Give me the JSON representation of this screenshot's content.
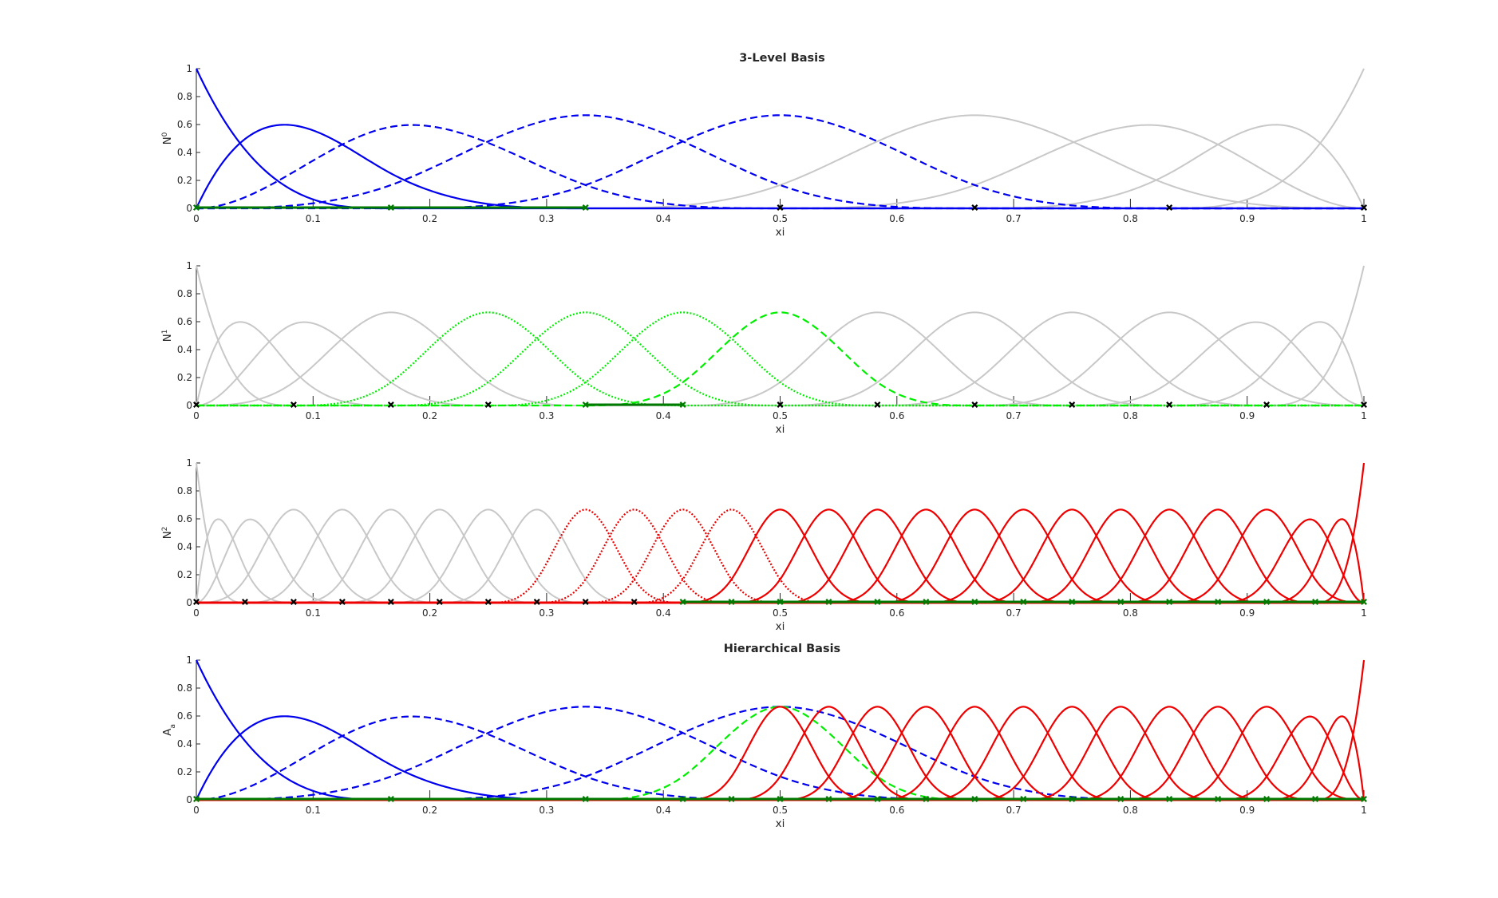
{
  "figure": {
    "background": "#ffffff"
  },
  "colors": {
    "level0": "#0000ee",
    "level1": "#00ee00",
    "level2": "#ee0000",
    "inactive": "#c8c8c8",
    "element_active": "#007a00",
    "knot": "#000000",
    "axis": "#262626"
  },
  "chart_data": [
    {
      "type": "line",
      "title": "3-Level Basis",
      "xlabel": "xi",
      "ylabel": "N",
      "ylabel_sup": "0",
      "xlim": [
        0,
        1
      ],
      "ylim": [
        0,
        1
      ],
      "xticks": [
        "0",
        "0.1",
        "0.2",
        "0.3",
        "0.4",
        "0.5",
        "0.6",
        "0.7",
        "0.8",
        "0.9",
        "1"
      ],
      "yticks": [
        "0",
        "0.2",
        "0.4",
        "0.6",
        "0.8",
        "1"
      ],
      "basis": {
        "degree": 3,
        "elements": 6,
        "level": 0
      },
      "functions": [
        {
          "index": 0,
          "color": "level0",
          "style": "solid"
        },
        {
          "index": 1,
          "color": "level0",
          "style": "solid"
        },
        {
          "index": 2,
          "color": "level0",
          "style": "dashed"
        },
        {
          "index": 3,
          "color": "level0",
          "style": "dashed"
        },
        {
          "index": 4,
          "color": "level0",
          "style": "dashed"
        },
        {
          "index": 5,
          "color": "inactive",
          "style": "solid"
        },
        {
          "index": 6,
          "color": "inactive",
          "style": "solid"
        },
        {
          "index": 7,
          "color": "inactive",
          "style": "solid"
        },
        {
          "index": 8,
          "color": "inactive",
          "style": "solid"
        }
      ],
      "active_elements": [
        [
          0,
          0.16667
        ],
        [
          0.16667,
          0.33333
        ]
      ],
      "knots": [
        0,
        0.16667,
        0.33333,
        0.5,
        0.66667,
        0.83333,
        1
      ],
      "active_knots": [
        0,
        0.16667,
        0.33333
      ]
    },
    {
      "type": "line",
      "title": "",
      "xlabel": "xi",
      "ylabel": "N",
      "ylabel_sup": "1",
      "xlim": [
        0,
        1
      ],
      "ylim": [
        0,
        1
      ],
      "xticks": [
        "0",
        "0.1",
        "0.2",
        "0.3",
        "0.4",
        "0.5",
        "0.6",
        "0.7",
        "0.8",
        "0.9",
        "1"
      ],
      "yticks": [
        "0",
        "0.2",
        "0.4",
        "0.6",
        "0.8",
        "1"
      ],
      "basis": {
        "degree": 3,
        "elements": 12,
        "level": 1
      },
      "functions": [
        {
          "index": 0,
          "color": "inactive",
          "style": "solid"
        },
        {
          "index": 1,
          "color": "inactive",
          "style": "solid"
        },
        {
          "index": 2,
          "color": "inactive",
          "style": "solid"
        },
        {
          "index": 3,
          "color": "inactive",
          "style": "solid"
        },
        {
          "index": 4,
          "color": "level1",
          "style": "dotted"
        },
        {
          "index": 5,
          "color": "level1",
          "style": "dotted"
        },
        {
          "index": 6,
          "color": "level1",
          "style": "dotted"
        },
        {
          "index": 7,
          "color": "level1",
          "style": "dashed"
        },
        {
          "index": 8,
          "color": "inactive",
          "style": "solid"
        },
        {
          "index": 9,
          "color": "inactive",
          "style": "solid"
        },
        {
          "index": 10,
          "color": "inactive",
          "style": "solid"
        },
        {
          "index": 11,
          "color": "inactive",
          "style": "solid"
        },
        {
          "index": 12,
          "color": "inactive",
          "style": "solid"
        },
        {
          "index": 13,
          "color": "inactive",
          "style": "solid"
        },
        {
          "index": 14,
          "color": "inactive",
          "style": "solid"
        }
      ],
      "active_elements": [
        [
          0.33333,
          0.41667
        ]
      ],
      "knots": [
        0,
        0.08333,
        0.16667,
        0.25,
        0.33333,
        0.41667,
        0.5,
        0.58333,
        0.66667,
        0.75,
        0.83333,
        0.91667,
        1
      ],
      "active_knots": [
        0.33333,
        0.41667
      ]
    },
    {
      "type": "line",
      "title": "",
      "xlabel": "xi",
      "ylabel": "N",
      "ylabel_sup": "2",
      "xlim": [
        0,
        1
      ],
      "ylim": [
        0,
        1
      ],
      "xticks": [
        "0",
        "0.1",
        "0.2",
        "0.3",
        "0.4",
        "0.5",
        "0.6",
        "0.7",
        "0.8",
        "0.9",
        "1"
      ],
      "yticks": [
        "0",
        "0.2",
        "0.4",
        "0.6",
        "0.8",
        "1"
      ],
      "basis": {
        "degree": 3,
        "elements": 24,
        "level": 2
      },
      "functions": [
        {
          "index": 0,
          "color": "inactive",
          "style": "solid"
        },
        {
          "index": 1,
          "color": "inactive",
          "style": "solid"
        },
        {
          "index": 2,
          "color": "inactive",
          "style": "solid"
        },
        {
          "index": 3,
          "color": "inactive",
          "style": "solid"
        },
        {
          "index": 4,
          "color": "inactive",
          "style": "solid"
        },
        {
          "index": 5,
          "color": "inactive",
          "style": "solid"
        },
        {
          "index": 6,
          "color": "inactive",
          "style": "solid"
        },
        {
          "index": 7,
          "color": "inactive",
          "style": "solid"
        },
        {
          "index": 8,
          "color": "inactive",
          "style": "solid"
        },
        {
          "index": 9,
          "color": "level2",
          "style": "dotted"
        },
        {
          "index": 10,
          "color": "level2",
          "style": "dotted"
        },
        {
          "index": 11,
          "color": "level2",
          "style": "dotted"
        },
        {
          "index": 12,
          "color": "level2",
          "style": "dotted"
        },
        {
          "index": 13,
          "color": "level2",
          "style": "solid"
        },
        {
          "index": 14,
          "color": "level2",
          "style": "solid"
        },
        {
          "index": 15,
          "color": "level2",
          "style": "solid"
        },
        {
          "index": 16,
          "color": "level2",
          "style": "solid"
        },
        {
          "index": 17,
          "color": "level2",
          "style": "solid"
        },
        {
          "index": 18,
          "color": "level2",
          "style": "solid"
        },
        {
          "index": 19,
          "color": "level2",
          "style": "solid"
        },
        {
          "index": 20,
          "color": "level2",
          "style": "solid"
        },
        {
          "index": 21,
          "color": "level2",
          "style": "solid"
        },
        {
          "index": 22,
          "color": "level2",
          "style": "solid"
        },
        {
          "index": 23,
          "color": "level2",
          "style": "solid"
        },
        {
          "index": 24,
          "color": "level2",
          "style": "solid"
        },
        {
          "index": 25,
          "color": "level2",
          "style": "solid"
        },
        {
          "index": 26,
          "color": "level2",
          "style": "solid"
        }
      ],
      "active_elements": [
        [
          0.41667,
          1
        ]
      ],
      "knots": [
        0,
        0.04167,
        0.08333,
        0.125,
        0.16667,
        0.20833,
        0.25,
        0.29167,
        0.33333,
        0.375,
        0.41667,
        0.45833,
        0.5,
        0.54167,
        0.58333,
        0.625,
        0.66667,
        0.70833,
        0.75,
        0.79167,
        0.83333,
        0.875,
        0.91667,
        0.95833,
        1
      ],
      "active_knots": [
        0.41667,
        0.45833,
        0.5,
        0.54167,
        0.58333,
        0.625,
        0.66667,
        0.70833,
        0.75,
        0.79167,
        0.83333,
        0.875,
        0.91667,
        0.95833,
        1
      ]
    },
    {
      "type": "line",
      "title": "Hierarchical Basis",
      "xlabel": "xi",
      "ylabel": "A",
      "ylabel_sub": "a",
      "xlim": [
        0,
        1
      ],
      "ylim": [
        0,
        1
      ],
      "xticks": [
        "0",
        "0.1",
        "0.2",
        "0.3",
        "0.4",
        "0.5",
        "0.6",
        "0.7",
        "0.8",
        "0.9",
        "1"
      ],
      "yticks": [
        "0",
        "0.2",
        "0.4",
        "0.6",
        "0.8",
        "1"
      ],
      "series": [
        {
          "level": 0,
          "degree": 3,
          "elements": 6,
          "index": 0,
          "color": "level0",
          "style": "solid"
        },
        {
          "level": 0,
          "degree": 3,
          "elements": 6,
          "index": 1,
          "color": "level0",
          "style": "solid"
        },
        {
          "level": 0,
          "degree": 3,
          "elements": 6,
          "index": 2,
          "color": "level0",
          "style": "dashed"
        },
        {
          "level": 0,
          "degree": 3,
          "elements": 6,
          "index": 3,
          "color": "level0",
          "style": "dashed"
        },
        {
          "level": 0,
          "degree": 3,
          "elements": 6,
          "index": 4,
          "color": "level0",
          "style": "dashed"
        },
        {
          "level": 1,
          "degree": 3,
          "elements": 12,
          "index": 7,
          "color": "level1",
          "style": "dashed"
        },
        {
          "level": 2,
          "degree": 3,
          "elements": 24,
          "index": 13,
          "color": "level2",
          "style": "solid"
        },
        {
          "level": 2,
          "degree": 3,
          "elements": 24,
          "index": 14,
          "color": "level2",
          "style": "solid"
        },
        {
          "level": 2,
          "degree": 3,
          "elements": 24,
          "index": 15,
          "color": "level2",
          "style": "solid"
        },
        {
          "level": 2,
          "degree": 3,
          "elements": 24,
          "index": 16,
          "color": "level2",
          "style": "solid"
        },
        {
          "level": 2,
          "degree": 3,
          "elements": 24,
          "index": 17,
          "color": "level2",
          "style": "solid"
        },
        {
          "level": 2,
          "degree": 3,
          "elements": 24,
          "index": 18,
          "color": "level2",
          "style": "solid"
        },
        {
          "level": 2,
          "degree": 3,
          "elements": 24,
          "index": 19,
          "color": "level2",
          "style": "solid"
        },
        {
          "level": 2,
          "degree": 3,
          "elements": 24,
          "index": 20,
          "color": "level2",
          "style": "solid"
        },
        {
          "level": 2,
          "degree": 3,
          "elements": 24,
          "index": 21,
          "color": "level2",
          "style": "solid"
        },
        {
          "level": 2,
          "degree": 3,
          "elements": 24,
          "index": 22,
          "color": "level2",
          "style": "solid"
        },
        {
          "level": 2,
          "degree": 3,
          "elements": 24,
          "index": 23,
          "color": "level2",
          "style": "solid"
        },
        {
          "level": 2,
          "degree": 3,
          "elements": 24,
          "index": 24,
          "color": "level2",
          "style": "solid"
        },
        {
          "level": 2,
          "degree": 3,
          "elements": 24,
          "index": 25,
          "color": "level2",
          "style": "solid"
        },
        {
          "level": 2,
          "degree": 3,
          "elements": 24,
          "index": 26,
          "color": "level2",
          "style": "solid"
        }
      ],
      "active_elements": [
        [
          0,
          1
        ]
      ],
      "knots": [
        0,
        0.16667,
        0.33333,
        0.41667,
        0.45833,
        0.5,
        0.54167,
        0.58333,
        0.625,
        0.66667,
        0.70833,
        0.75,
        0.79167,
        0.83333,
        0.875,
        0.91667,
        0.95833,
        1
      ],
      "active_knots": [
        0,
        0.16667,
        0.33333,
        0.41667,
        0.45833,
        0.5,
        0.54167,
        0.58333,
        0.625,
        0.66667,
        0.70833,
        0.75,
        0.79167,
        0.83333,
        0.875,
        0.91667,
        0.95833,
        1
      ]
    }
  ]
}
